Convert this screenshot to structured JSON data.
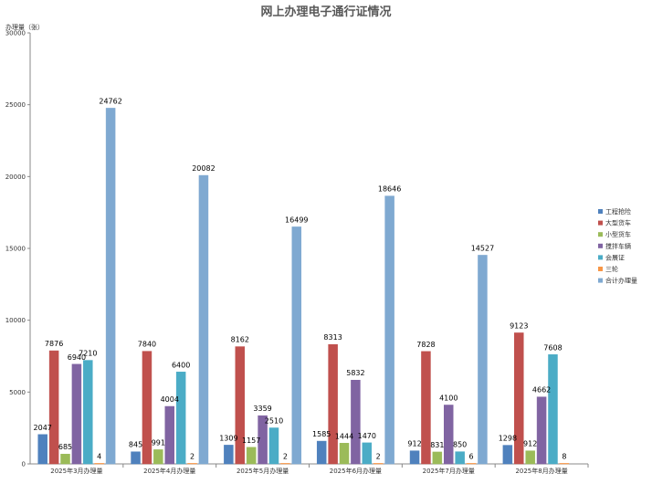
{
  "chart_data": {
    "type": "bar",
    "title": "网上办理电子通行证情况",
    "ylabel": "办理量（张）",
    "xlabel": "",
    "ylim": [
      0,
      30000
    ],
    "yticks": [
      0,
      5000,
      10000,
      15000,
      20000,
      25000,
      30000
    ],
    "grid": false,
    "legend_position": "right",
    "categories": [
      "2025年3月办理量",
      "2025年4月办理量",
      "2025年5月办理量",
      "2025年6月办理量",
      "2025年7月办理量",
      "2025年8月办理量"
    ],
    "series": [
      {
        "name": "工程抢险",
        "color": "#4F81BD",
        "values": [
          2047,
          845,
          1309,
          1585,
          912,
          1298
        ]
      },
      {
        "name": "大型货车",
        "color": "#C0504D",
        "values": [
          7876,
          7840,
          8162,
          8313,
          7828,
          9123
        ]
      },
      {
        "name": "小型货车",
        "color": "#9BBB59",
        "values": [
          685,
          991,
          1157,
          1444,
          831,
          912
        ]
      },
      {
        "name": "搅拌车辆",
        "color": "#8064A2",
        "values": [
          6940,
          4004,
          3359,
          5832,
          4100,
          4662
        ]
      },
      {
        "name": "会展证",
        "color": "#4BACC6",
        "values": [
          7210,
          6400,
          2510,
          1470,
          850,
          7608
        ]
      },
      {
        "name": "三轮",
        "color": "#F79646",
        "values": [
          4,
          2,
          2,
          2,
          6,
          8
        ]
      },
      {
        "name": "合计办理量",
        "color": "#7FA9D1",
        "values": [
          24762,
          20082,
          16499,
          18646,
          14527,
          null
        ]
      }
    ]
  }
}
